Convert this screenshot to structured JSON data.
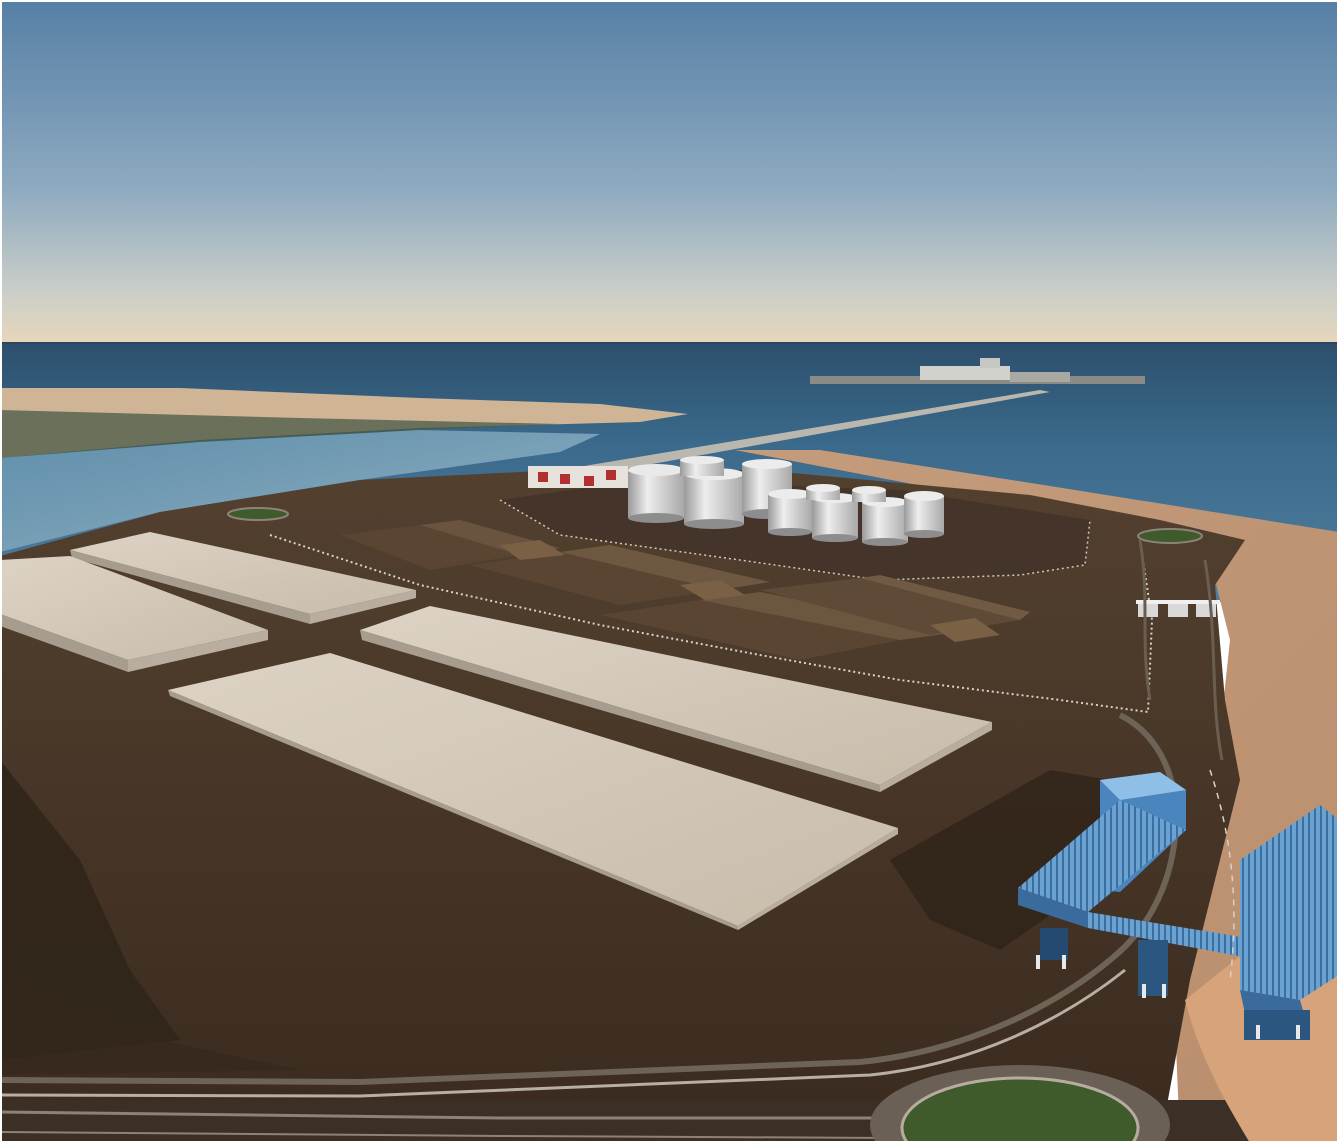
{
  "scene": {
    "description_visible_text": "",
    "palette": {
      "sky_top": "#5b86ab",
      "sky_horizon": "#e6d7bf",
      "sea": "#3f6f90",
      "sea_far": "#2f5675",
      "sand": "#caa382",
      "ground": "#4a3829",
      "ground_dark": "#3b2c20",
      "shed_roof": "#d3c7b7",
      "tank": "#d4d4d4",
      "conveyor_blue": "#5b95c8",
      "roundabout_green": "#3f5a2b"
    },
    "icons": [
      "sky",
      "sea",
      "sand-spit",
      "jetty",
      "storage-tanks",
      "storage-sheds",
      "stockpiles",
      "roundabout",
      "conveyor-gantry",
      "road"
    ]
  }
}
